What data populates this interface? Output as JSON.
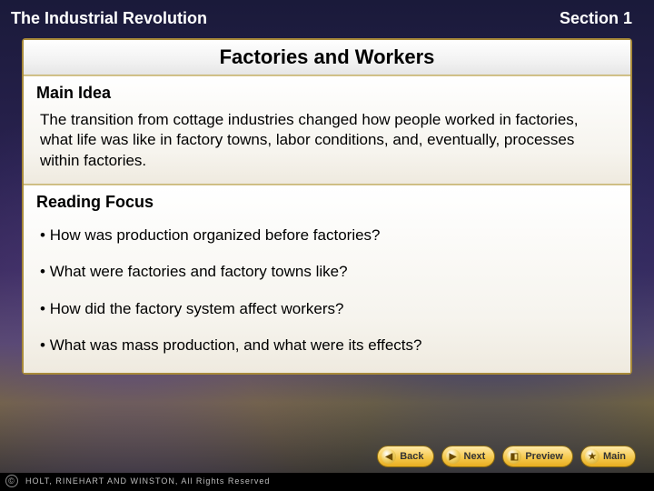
{
  "header": {
    "chapter_title": "The Industrial Revolution",
    "section_label": "Section 1"
  },
  "slide": {
    "title": "Factories and Workers",
    "main_idea": {
      "heading": "Main Idea",
      "text": "The transition from cottage industries changed how people worked in factories, what life was like in factory towns, labor conditions, and, eventually, processes within factories."
    },
    "reading_focus": {
      "heading": "Reading Focus",
      "bullets": [
        "How was production organized before factories?",
        "What were factories and factory towns like?",
        "How did the factory system affect workers?",
        "What was mass production, and what were its effects?"
      ]
    }
  },
  "nav": {
    "back": {
      "label": "Back",
      "glyph": "◀"
    },
    "next": {
      "label": "Next",
      "glyph": "▶"
    },
    "preview": {
      "label": "Preview",
      "glyph": "◧"
    },
    "main": {
      "label": "Main",
      "glyph": "★"
    }
  },
  "footer": {
    "copyright_glyph": "©",
    "text": "HOLT, RINEHART AND WINSTON, All Rights Reserved"
  },
  "colors": {
    "panel_border": "#a88a3a",
    "background_top": "#1a1a3a",
    "nav_gold": "#f6c94e"
  }
}
